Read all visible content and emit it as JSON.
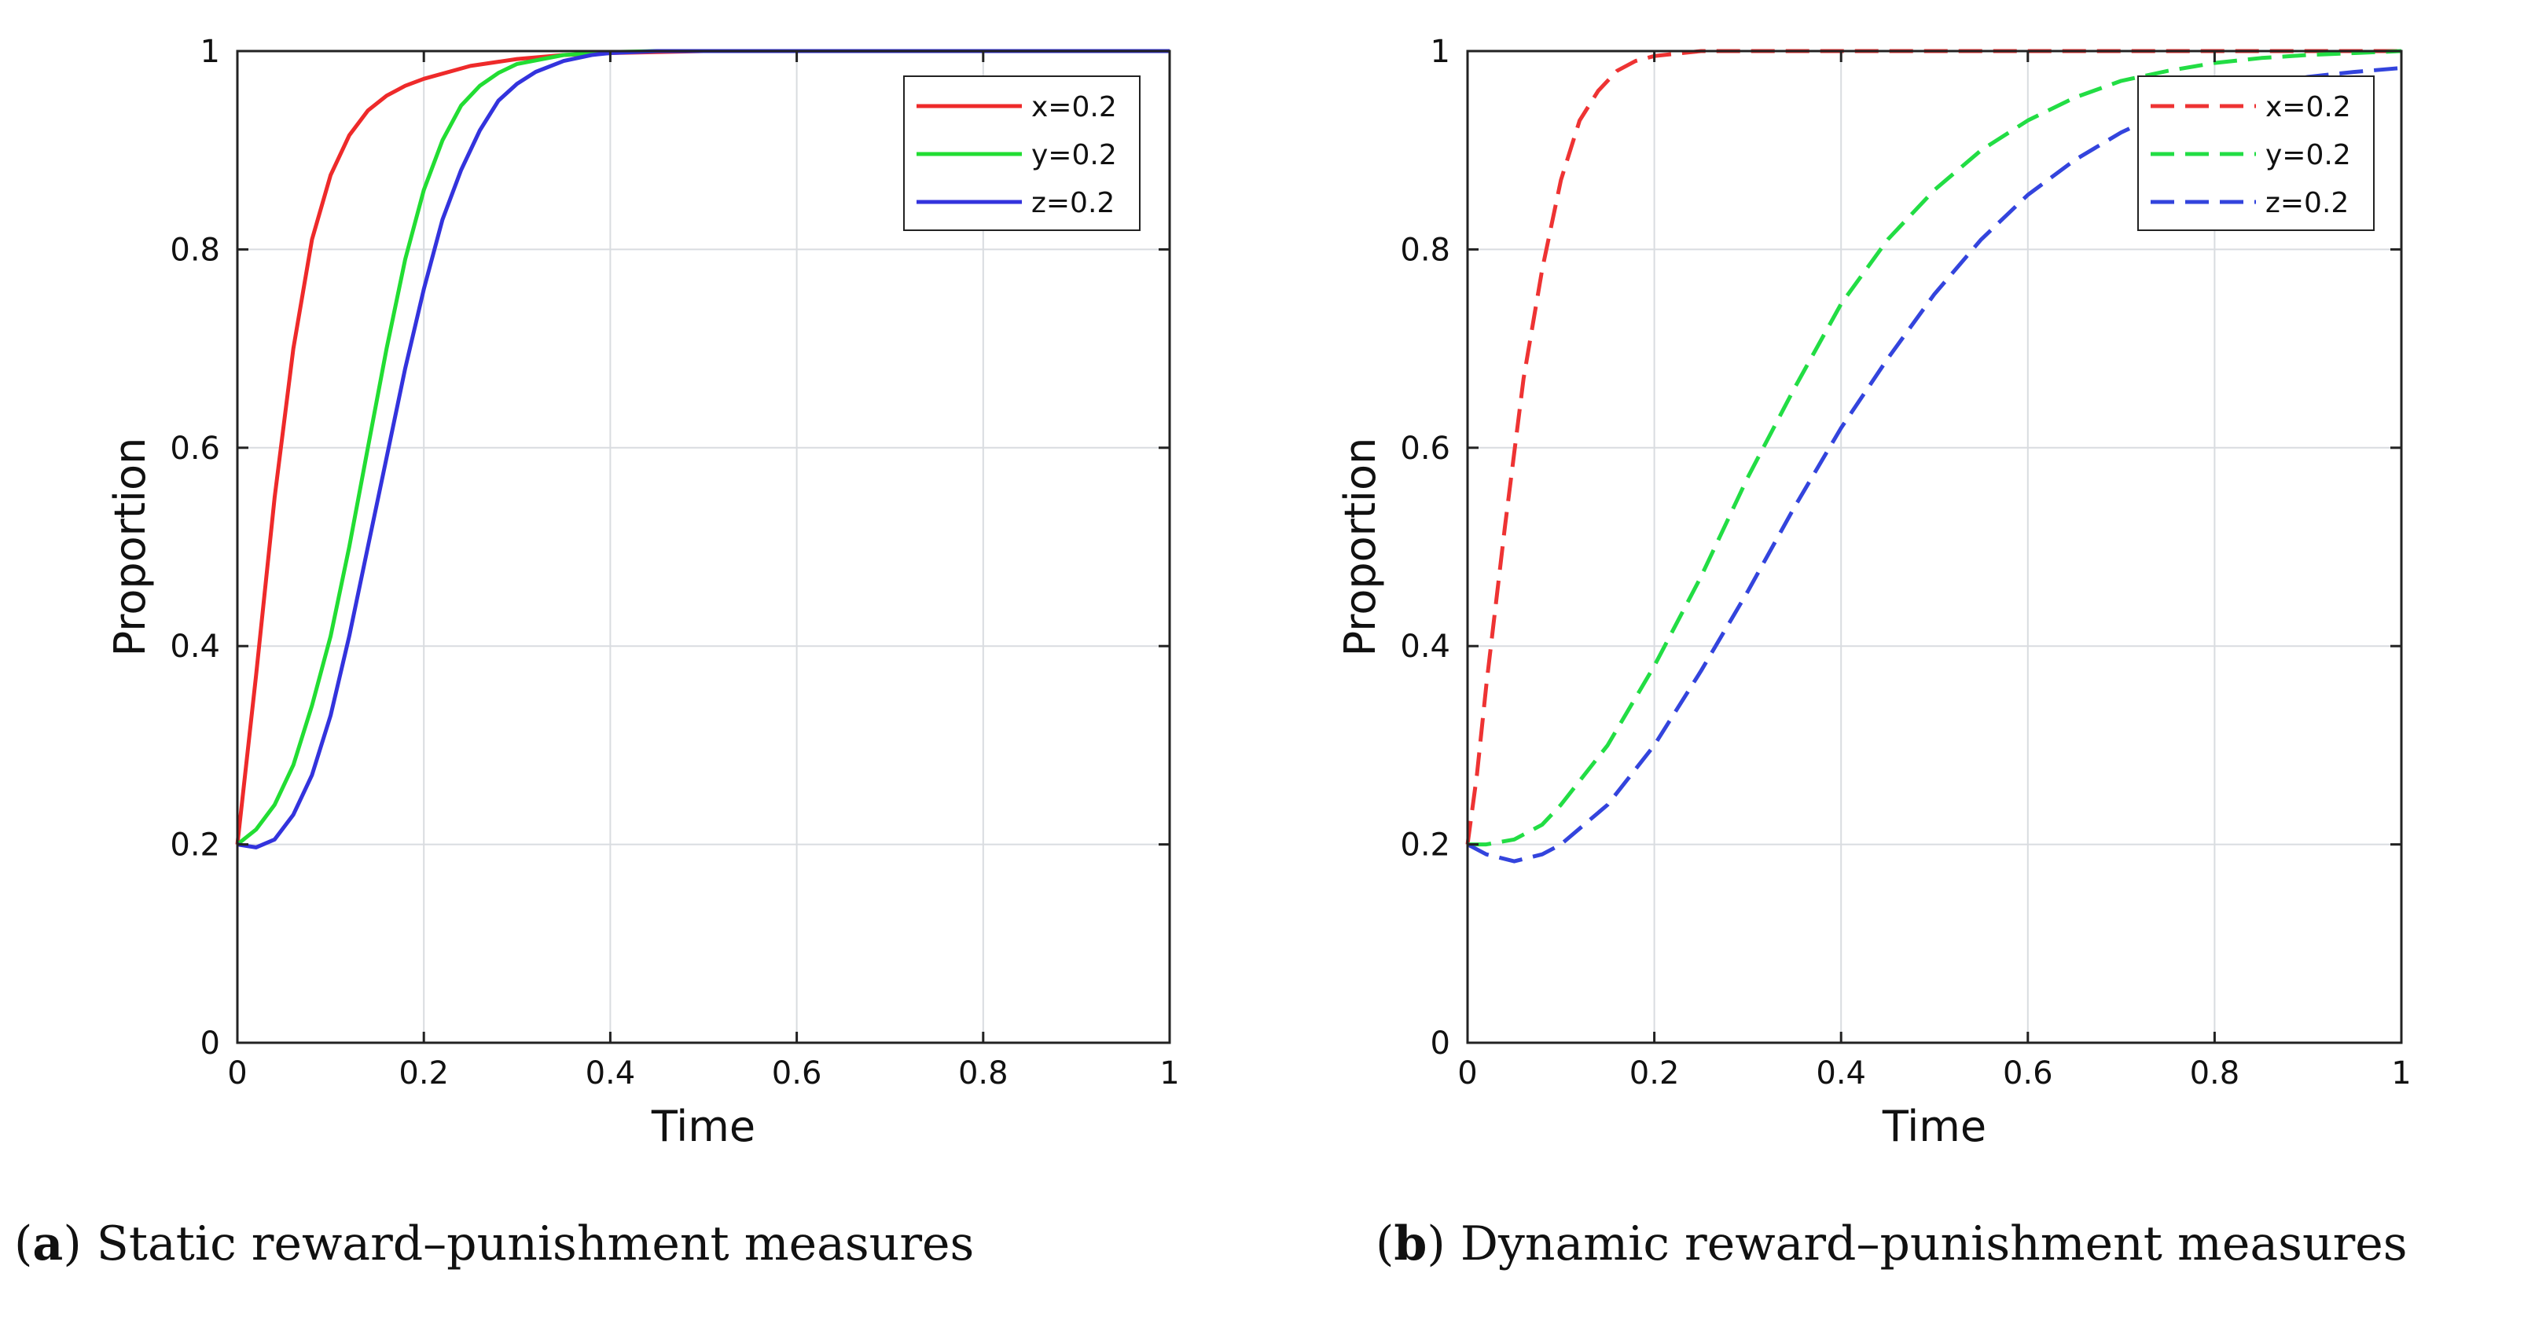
{
  "chart_data": [
    {
      "id": "a",
      "type": "line",
      "caption_letter": "a",
      "caption_text": "Static reward–punishment measures",
      "xlabel": "Time",
      "ylabel": "Proportion",
      "xlim": [
        0,
        1
      ],
      "ylim": [
        0,
        1
      ],
      "xticks": [
        "0",
        "0.2",
        "0.4",
        "0.6",
        "0.8",
        "1"
      ],
      "yticks": [
        "0",
        "0.2",
        "0.4",
        "0.6",
        "0.8",
        "1"
      ],
      "grid": true,
      "legend_position": "top-right",
      "line_style": "solid",
      "series": [
        {
          "name": "x=0.2",
          "color": "#ee2a2a",
          "x": [
            0,
            0.02,
            0.04,
            0.06,
            0.08,
            0.1,
            0.12,
            0.14,
            0.16,
            0.18,
            0.2,
            0.25,
            0.3,
            0.35,
            0.4,
            0.5,
            0.6,
            0.8,
            1.0
          ],
          "y": [
            0.2,
            0.37,
            0.55,
            0.7,
            0.81,
            0.875,
            0.915,
            0.94,
            0.955,
            0.965,
            0.972,
            0.985,
            0.992,
            0.996,
            0.998,
            1.0,
            1.0,
            1.0,
            1.0
          ]
        },
        {
          "name": "y=0.2",
          "color": "#22dd33",
          "x": [
            0,
            0.02,
            0.04,
            0.06,
            0.08,
            0.1,
            0.12,
            0.14,
            0.16,
            0.18,
            0.2,
            0.22,
            0.24,
            0.26,
            0.28,
            0.3,
            0.35,
            0.4,
            0.45,
            0.5,
            0.6,
            0.8,
            1.0
          ],
          "y": [
            0.2,
            0.215,
            0.24,
            0.28,
            0.34,
            0.41,
            0.5,
            0.6,
            0.7,
            0.79,
            0.86,
            0.91,
            0.945,
            0.965,
            0.978,
            0.987,
            0.996,
            0.999,
            1.0,
            1.0,
            1.0,
            1.0,
            1.0
          ]
        },
        {
          "name": "z=0.2",
          "color": "#3333dd",
          "x": [
            0,
            0.02,
            0.04,
            0.06,
            0.08,
            0.1,
            0.12,
            0.14,
            0.16,
            0.18,
            0.2,
            0.22,
            0.24,
            0.26,
            0.28,
            0.3,
            0.32,
            0.35,
            0.38,
            0.4,
            0.45,
            0.5,
            0.6,
            0.8,
            1.0
          ],
          "y": [
            0.2,
            0.197,
            0.205,
            0.23,
            0.27,
            0.33,
            0.41,
            0.5,
            0.59,
            0.68,
            0.76,
            0.83,
            0.88,
            0.92,
            0.95,
            0.967,
            0.979,
            0.99,
            0.996,
            0.998,
            1.0,
            1.0,
            1.0,
            1.0,
            1.0
          ]
        }
      ]
    },
    {
      "id": "b",
      "type": "line",
      "caption_letter": "b",
      "caption_text": "Dynamic reward–punishment measures",
      "xlabel": "Time",
      "ylabel": "Proportion",
      "xlim": [
        0,
        1
      ],
      "ylim": [
        0,
        1
      ],
      "xticks": [
        "0",
        "0.2",
        "0.4",
        "0.6",
        "0.8",
        "1"
      ],
      "yticks": [
        "0",
        "0.2",
        "0.4",
        "0.6",
        "0.8",
        "1"
      ],
      "grid": true,
      "legend_position": "top-right",
      "line_style": "dashed",
      "series": [
        {
          "name": "x=0.2",
          "color": "#ee3333",
          "x": [
            0,
            0.01,
            0.02,
            0.04,
            0.06,
            0.08,
            0.1,
            0.12,
            0.14,
            0.16,
            0.18,
            0.2,
            0.25,
            0.3,
            0.4,
            0.6,
            0.8,
            1.0
          ],
          "y": [
            0.2,
            0.27,
            0.36,
            0.52,
            0.67,
            0.78,
            0.87,
            0.93,
            0.96,
            0.98,
            0.99,
            0.995,
            1.0,
            1.0,
            1.0,
            1.0,
            1.0,
            1.0
          ]
        },
        {
          "name": "y=0.2",
          "color": "#22dd44",
          "x": [
            0,
            0.02,
            0.05,
            0.08,
            0.1,
            0.15,
            0.2,
            0.25,
            0.3,
            0.35,
            0.4,
            0.45,
            0.5,
            0.55,
            0.6,
            0.65,
            0.7,
            0.75,
            0.8,
            0.85,
            0.9,
            0.95,
            1.0
          ],
          "y": [
            0.2,
            0.2,
            0.205,
            0.22,
            0.24,
            0.3,
            0.38,
            0.47,
            0.57,
            0.66,
            0.745,
            0.81,
            0.86,
            0.9,
            0.93,
            0.953,
            0.97,
            0.98,
            0.988,
            0.993,
            0.996,
            0.998,
            1.0
          ]
        },
        {
          "name": "z=0.2",
          "color": "#3344dd",
          "x": [
            0,
            0.02,
            0.05,
            0.08,
            0.1,
            0.15,
            0.2,
            0.25,
            0.3,
            0.35,
            0.4,
            0.45,
            0.5,
            0.55,
            0.6,
            0.65,
            0.7,
            0.75,
            0.8,
            0.85,
            0.9,
            0.95,
            1.0
          ],
          "y": [
            0.2,
            0.19,
            0.183,
            0.19,
            0.2,
            0.24,
            0.3,
            0.375,
            0.455,
            0.54,
            0.62,
            0.69,
            0.755,
            0.81,
            0.855,
            0.89,
            0.918,
            0.94,
            0.955,
            0.966,
            0.974,
            0.979,
            0.983
          ]
        }
      ]
    }
  ]
}
